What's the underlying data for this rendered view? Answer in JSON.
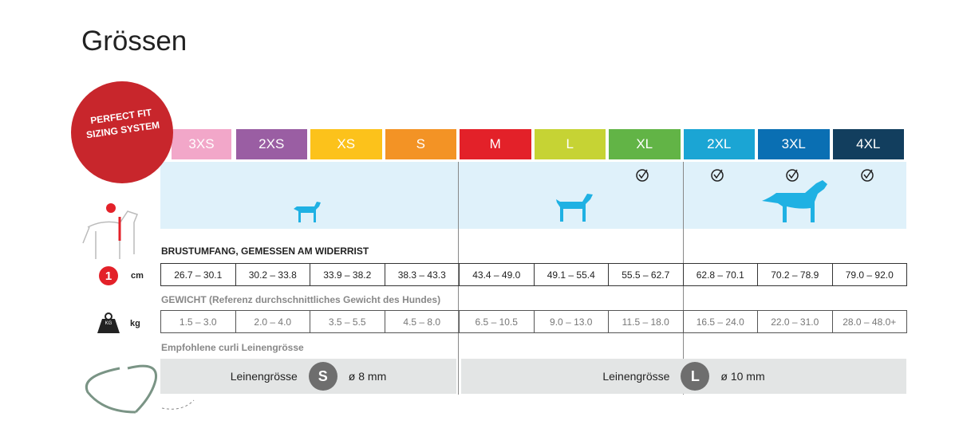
{
  "title": "Grössen",
  "badge": {
    "lines": [
      "PERFECT FIT",
      "SIZING SYSTEM"
    ]
  },
  "sizes": [
    {
      "label": "3XS",
      "color": "#f2a7c9"
    },
    {
      "label": "2XS",
      "color": "#9a5ea3"
    },
    {
      "label": "XS",
      "color": "#fcc21b"
    },
    {
      "label": "S",
      "color": "#f39325"
    },
    {
      "label": "M",
      "color": "#e32129"
    },
    {
      "label": "L",
      "color": "#c6d334"
    },
    {
      "label": "XL",
      "color": "#62b446"
    },
    {
      "label": "2XL",
      "color": "#1ba5d4"
    },
    {
      "label": "3XL",
      "color": "#0a6fb3"
    },
    {
      "label": "4XL",
      "color": "#123e5e"
    }
  ],
  "chest": {
    "label": "BRUSTUMFANG, GEMESSEN AM WIDERRIST",
    "marker": "1",
    "unit": "cm",
    "values": [
      "26.7 – 30.1",
      "30.2 – 33.8",
      "33.9 – 38.2",
      "38.3 – 43.3",
      "43.4 – 49.0",
      "49.1 – 55.4",
      "55.5 – 62.7",
      "62.8 – 70.1",
      "70.2 – 78.9",
      "79.0 – 92.0"
    ]
  },
  "weight": {
    "label": "GEWICHT",
    "note": " (Referenz durchschnittliches Gewicht des Hundes)",
    "icon": "KG",
    "unit": "kg",
    "values": [
      "1.5 – 3.0",
      "2.0 – 4.0",
      "3.5 – 5.5",
      "4.5 – 8.0",
      "6.5 – 10.5",
      "9.0 – 13.0",
      "11.5 – 18.0",
      "16.5 – 24.0",
      "22.0 – 31.0",
      "28.0 – 48.0+"
    ]
  },
  "leash": {
    "label": "Empfohlene curli Leinengrösse",
    "items": [
      {
        "label": "Leinengrösse",
        "size": "S",
        "diameter": "ø 8 mm"
      },
      {
        "label": "Leinengrösse",
        "size": "L",
        "diameter": "ø 10 mm"
      }
    ]
  }
}
